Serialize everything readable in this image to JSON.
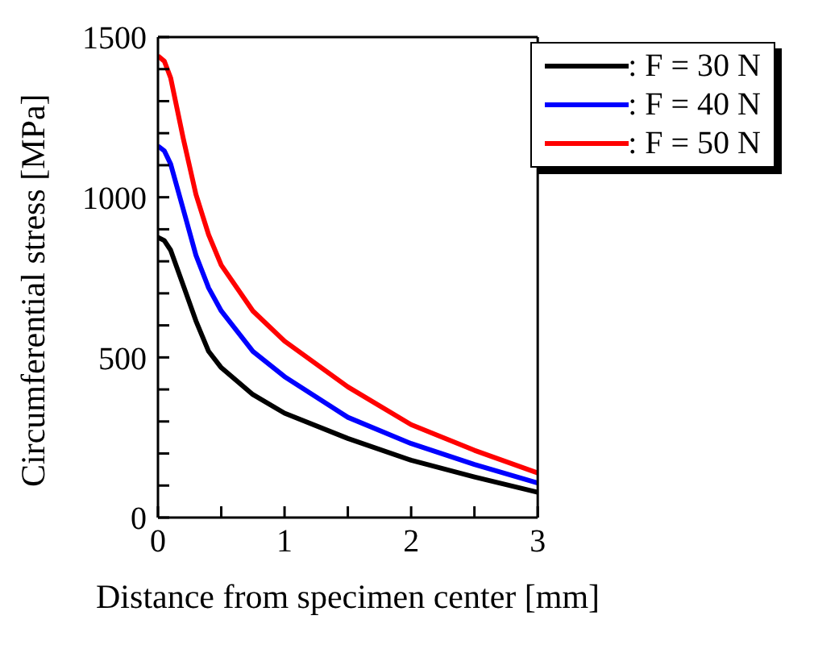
{
  "chart_data": {
    "type": "line",
    "xlabel": "Distance from specimen center [mm]",
    "ylabel": "Circumferential stress [MPa]",
    "x": [
      0,
      0.05,
      0.1,
      0.2,
      0.3,
      0.4,
      0.5,
      0.75,
      1,
      1.5,
      2,
      2.5,
      3
    ],
    "series": [
      {
        "name": ": F = 30 N",
        "color": "#000000",
        "values": [
          875,
          865,
          835,
          725,
          614,
          519,
          468,
          384,
          326,
          247,
          179,
          127,
          79
        ]
      },
      {
        "name": ": F = 40 N",
        "color": "#0000ff",
        "values": [
          1160,
          1145,
          1104,
          962,
          819,
          717,
          645,
          519,
          440,
          313,
          231,
          166,
          108
        ]
      },
      {
        "name": ": F = 50 N",
        "color": "#ff0000",
        "values": [
          1441,
          1425,
          1373,
          1183,
          1009,
          883,
          788,
          645,
          551,
          408,
          290,
          210,
          139
        ]
      }
    ],
    "xlim": [
      0,
      3
    ],
    "xticks": [
      0,
      {
        "value": 0.5,
        "label": null
      },
      1,
      {
        "value": 1.5,
        "label": null
      },
      2,
      {
        "value": 2.5,
        "label": null
      },
      3
    ],
    "ylim": [
      0,
      1500
    ],
    "yticks": [
      0,
      {
        "value": 100,
        "label": null
      },
      {
        "value": 200,
        "label": null
      },
      {
        "value": 300,
        "label": null
      },
      {
        "value": 400,
        "label": null
      },
      500,
      {
        "value": 600,
        "label": null
      },
      {
        "value": 700,
        "label": null
      },
      {
        "value": 800,
        "label": null
      },
      {
        "value": 900,
        "label": null
      },
      1000,
      {
        "value": 1100,
        "label": null
      },
      {
        "value": 1200,
        "label": null
      },
      {
        "value": 1300,
        "label": null
      },
      {
        "value": 1400,
        "label": null
      },
      1500
    ],
    "grid": false,
    "legend": "top right",
    "marker": "none",
    "line_style": "solid"
  }
}
